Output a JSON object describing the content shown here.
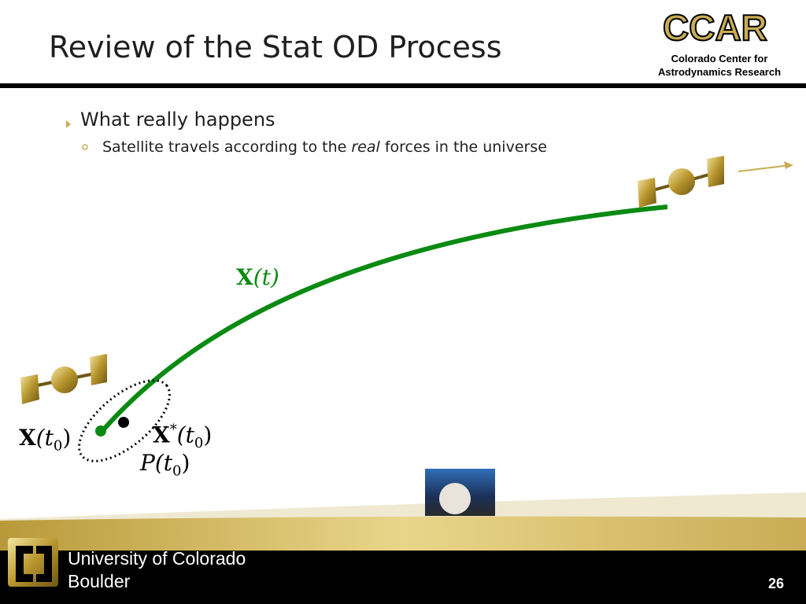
{
  "header": {
    "title": "Review of the Stat OD Process",
    "logo": {
      "acronym": "CCAR",
      "line1": "Colorado Center for",
      "line2": "Astrodynamics Research"
    }
  },
  "bullets": [
    {
      "text": "What really happens",
      "sub": [
        {
          "before": "Satellite travels according to the ",
          "emphasis": "real",
          "after": " forces in the universe"
        }
      ]
    }
  ],
  "diagram": {
    "trajectory": {
      "base": "X",
      "arg": "(t)"
    },
    "true_initial": {
      "base": "X",
      "open": "(t",
      "sub": "0",
      "close": ")"
    },
    "reference_initial": {
      "base": "X",
      "sup": "*",
      "open": "(t",
      "sub": "0",
      "close": ")"
    },
    "covariance": {
      "base": "P",
      "open": "(t",
      "sub": "0",
      "close": ")"
    }
  },
  "footer": {
    "university": "University of Colorado",
    "campus": "Boulder",
    "page": "26"
  }
}
